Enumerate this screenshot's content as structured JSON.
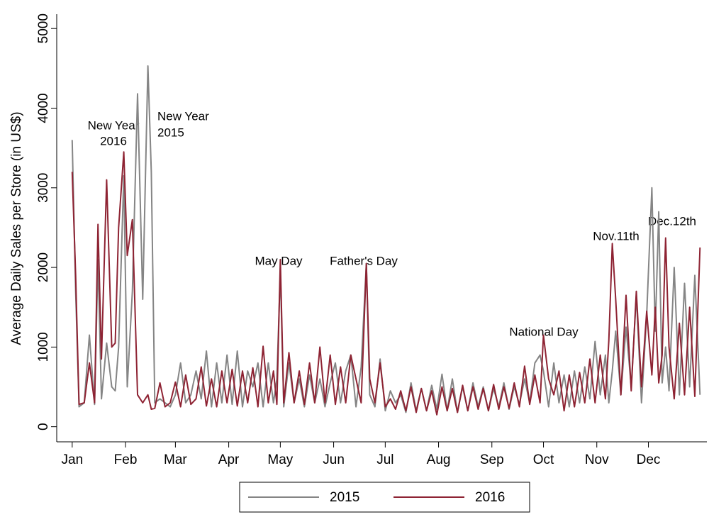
{
  "chart_data": {
    "type": "line",
    "ylabel": "Average Daily Sales per Store (in US$)",
    "xlim": [
      -9,
      369
    ],
    "ylim": [
      -190,
      5180
    ],
    "yticks": [
      0,
      1000,
      2000,
      3000,
      4000,
      5000
    ],
    "xticks": [
      {
        "value": 0,
        "label": "Jan"
      },
      {
        "value": 31,
        "label": "Feb"
      },
      {
        "value": 60,
        "label": "Mar"
      },
      {
        "value": 91,
        "label": "Apr"
      },
      {
        "value": 121,
        "label": "May"
      },
      {
        "value": 152,
        "label": "Jun"
      },
      {
        "value": 182,
        "label": "Jul"
      },
      {
        "value": 213,
        "label": "Aug"
      },
      {
        "value": 244,
        "label": "Sep"
      },
      {
        "value": 274,
        "label": "Oct"
      },
      {
        "value": 305,
        "label": "Nov"
      },
      {
        "value": 335,
        "label": "Dec"
      }
    ],
    "annotations": [
      [
        "New Year",
        "2016"
      ],
      [
        "New Year",
        "2015"
      ],
      [
        "May Day"
      ],
      [
        "Father's Day"
      ],
      [
        "National Day"
      ],
      [
        "Nov.11th"
      ],
      [
        "Dec.12th"
      ]
    ],
    "x": [
      0,
      2,
      4,
      7,
      10,
      13,
      15,
      17,
      20,
      23,
      25,
      27,
      30,
      32,
      35,
      38,
      41,
      44,
      46,
      48,
      51,
      54,
      57,
      60,
      63,
      66,
      69,
      72,
      75,
      78,
      81,
      84,
      87,
      90,
      93,
      96,
      99,
      102,
      105,
      108,
      111,
      114,
      117,
      119,
      121,
      123,
      126,
      129,
      132,
      135,
      138,
      141,
      144,
      147,
      150,
      153,
      156,
      159,
      162,
      165,
      168,
      171,
      173,
      176,
      179,
      182,
      185,
      188,
      191,
      194,
      197,
      200,
      203,
      206,
      209,
      212,
      215,
      218,
      221,
      224,
      227,
      230,
      233,
      236,
      239,
      242,
      245,
      248,
      251,
      254,
      257,
      260,
      263,
      266,
      269,
      272,
      274,
      277,
      280,
      283,
      286,
      289,
      292,
      295,
      298,
      301,
      304,
      307,
      310,
      312,
      314,
      316,
      319,
      322,
      325,
      328,
      331,
      334,
      337,
      339,
      341,
      343,
      345,
      347,
      350,
      353,
      356,
      359,
      362,
      365
    ],
    "series": [
      {
        "name": "2015",
        "color": "#858585",
        "values": [
          3600,
          1700,
          250,
          300,
          1150,
          280,
          2100,
          350,
          1050,
          500,
          450,
          1000,
          3150,
          500,
          1700,
          4180,
          1600,
          4530,
          3200,
          300,
          350,
          300,
          250,
          400,
          800,
          300,
          400,
          700,
          350,
          950,
          250,
          800,
          300,
          900,
          280,
          950,
          250,
          700,
          500,
          800,
          250,
          800,
          300,
          600,
          1950,
          250,
          800,
          300,
          600,
          250,
          650,
          300,
          600,
          250,
          550,
          800,
          300,
          700,
          900,
          250,
          750,
          2050,
          400,
          250,
          850,
          200,
          450,
          300,
          400,
          180,
          550,
          200,
          480,
          200,
          520,
          220,
          660,
          200,
          600,
          180,
          500,
          200,
          550,
          250,
          500,
          200,
          480,
          250,
          550,
          220,
          500,
          280,
          600,
          300,
          800,
          900,
          700,
          250,
          800,
          300,
          650,
          250,
          700,
          300,
          750,
          350,
          1070,
          400,
          900,
          300,
          700,
          1200,
          400,
          1250,
          500,
          1650,
          300,
          1400,
          3000,
          1200,
          2700,
          550,
          1000,
          450,
          2000,
          400,
          1800,
          500,
          1900,
          400
        ]
      },
      {
        "name": "2016",
        "color": "#8e2333",
        "values": [
          3200,
          1900,
          280,
          300,
          800,
          300,
          2540,
          850,
          3100,
          1000,
          1050,
          2500,
          3450,
          2150,
          2600,
          400,
          300,
          400,
          220,
          230,
          550,
          250,
          300,
          560,
          250,
          650,
          280,
          350,
          750,
          260,
          600,
          250,
          700,
          300,
          720,
          260,
          700,
          300,
          740,
          250,
          1010,
          300,
          700,
          280,
          2100,
          300,
          930,
          300,
          700,
          280,
          800,
          300,
          1000,
          300,
          900,
          280,
          750,
          300,
          900,
          600,
          300,
          2050,
          600,
          300,
          800,
          250,
          350,
          220,
          450,
          200,
          500,
          180,
          480,
          200,
          450,
          150,
          500,
          200,
          480,
          180,
          520,
          200,
          500,
          220,
          480,
          200,
          530,
          220,
          500,
          230,
          550,
          250,
          760,
          280,
          650,
          300,
          1150,
          600,
          400,
          700,
          200,
          650,
          250,
          680,
          300,
          850,
          300,
          900,
          350,
          1080,
          2300,
          1600,
          400,
          1650,
          450,
          1700,
          500,
          1450,
          650,
          1500,
          550,
          900,
          2370,
          1000,
          350,
          1300,
          400,
          1500,
          380,
          2250
        ]
      }
    ]
  }
}
